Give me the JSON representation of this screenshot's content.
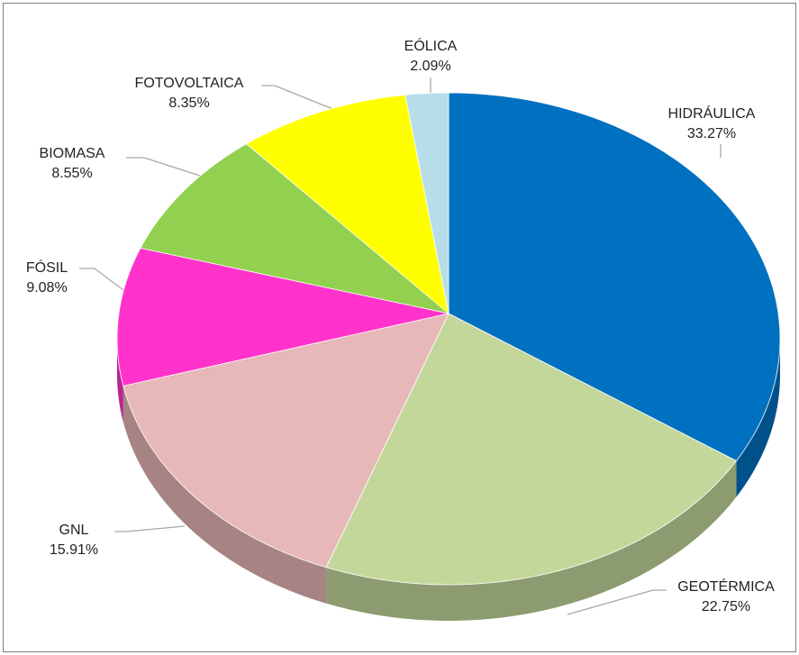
{
  "chart_data": {
    "type": "pie",
    "categories": [
      "HIDRÁULICA",
      "GEOTÉRMICA",
      "GNL",
      "FÓSIL",
      "BIOMASA",
      "FOTOVOLTAICA",
      "EÓLICA"
    ],
    "values": [
      33.27,
      22.75,
      15.91,
      9.08,
      8.55,
      8.35,
      2.09
    ],
    "value_labels": [
      "33.27%",
      "22.75%",
      "15.91%",
      "9.08%",
      "8.55%",
      "8.35%",
      "2.09%"
    ],
    "colors": [
      "#0070c0",
      "#c4d79b",
      "#e6b8b7",
      "#ff33cc",
      "#92d050",
      "#ffff00",
      "#b7dee8"
    ]
  }
}
